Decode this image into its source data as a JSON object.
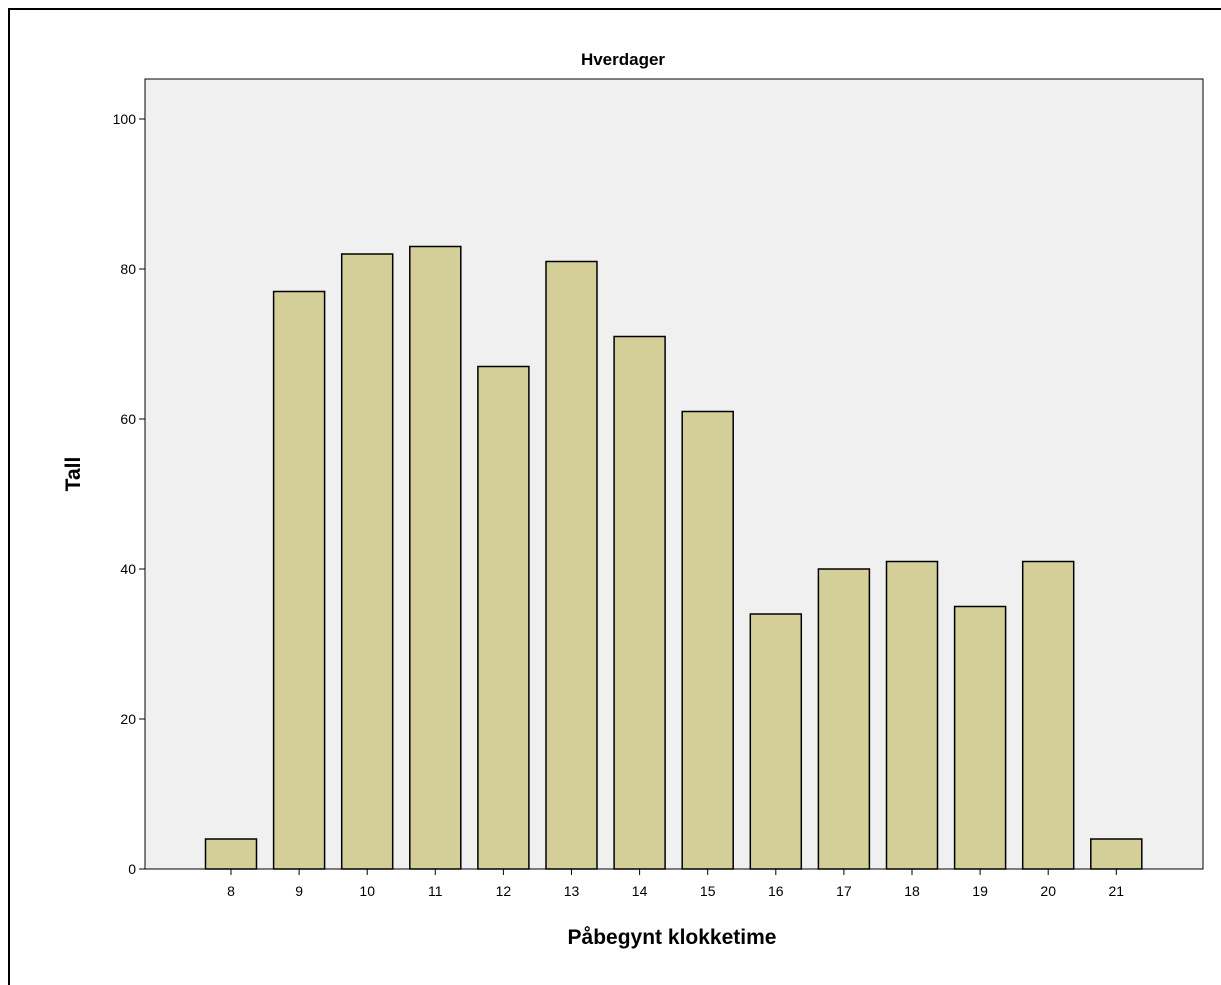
{
  "chart_data": {
    "type": "bar",
    "title": "Hverdager",
    "xlabel": "Påbegynt klokketime",
    "ylabel": "Tall",
    "categories": [
      "8",
      "9",
      "10",
      "11",
      "12",
      "13",
      "14",
      "15",
      "16",
      "17",
      "18",
      "19",
      "20",
      "21"
    ],
    "values": [
      4,
      77,
      82,
      83,
      67,
      81,
      71,
      61,
      34,
      40,
      41,
      35,
      41,
      4
    ],
    "ylim": [
      0,
      100
    ],
    "yticks": [
      "0",
      "20",
      "40",
      "60",
      "80",
      "100"
    ],
    "grid": false,
    "colors": {
      "bar_fill": "#d4cf98",
      "bar_stroke": "#000000",
      "plot_background": "#f0f0f0"
    }
  }
}
